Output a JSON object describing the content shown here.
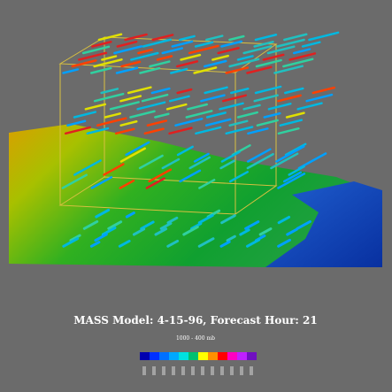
{
  "title": "MASS Model: 4-15-96, Forecast Hour: 21",
  "subtitle": "1000 - 400 mb"
}
